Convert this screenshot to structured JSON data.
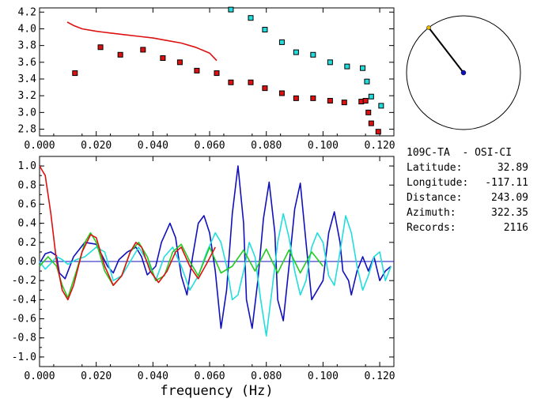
{
  "info": {
    "station": "109C-TA  - OSI-CI",
    "rows": [
      {
        "label": "Latitude:",
        "value": "32.89"
      },
      {
        "label": "Longitude:",
        "value": "-117.11"
      },
      {
        "label": "Distance:",
        "value": "243.09"
      },
      {
        "label": "Azimuth:",
        "value": "322.35"
      },
      {
        "label": "Records:",
        "value": "2116"
      }
    ]
  },
  "chart_data": [
    {
      "type": "scatter",
      "title": "",
      "xlabel": "",
      "ylabel": "",
      "xlim": [
        0.0,
        0.125
      ],
      "ylim": [
        2.72,
        4.25
      ],
      "xticks": [
        "0.000",
        "0.020",
        "0.040",
        "0.060",
        "0.080",
        "0.100",
        "0.120"
      ],
      "yticks": [
        "2.8",
        "3.0",
        "3.2",
        "3.4",
        "3.6",
        "3.8",
        "4.0",
        "4.2"
      ],
      "colors": {
        "red": "#dd1111",
        "cyan": "#22dddd",
        "marker_edge": "#000000"
      },
      "series": [
        {
          "type": "line",
          "color": "red",
          "x": [
            0.0098,
            0.012,
            0.015,
            0.02,
            0.025,
            0.03,
            0.035,
            0.04,
            0.045,
            0.05,
            0.055,
            0.06,
            0.0625
          ],
          "y": [
            4.08,
            4.04,
            4.0,
            3.97,
            3.95,
            3.93,
            3.91,
            3.89,
            3.86,
            3.83,
            3.78,
            3.71,
            3.62
          ]
        },
        {
          "type": "scatter",
          "color": "red",
          "x": [
            0.0125,
            0.0215,
            0.0285,
            0.0365,
            0.0435,
            0.0495,
            0.0555,
            0.0625,
            0.0675,
            0.0745,
            0.0795,
            0.0855,
            0.0905,
            0.0965,
            0.1025,
            0.1075,
            0.1135,
            0.115,
            0.116,
            0.117,
            0.1195
          ],
          "y": [
            3.47,
            3.78,
            3.69,
            3.75,
            3.65,
            3.6,
            3.5,
            3.47,
            3.36,
            3.36,
            3.29,
            3.23,
            3.17,
            3.17,
            3.14,
            3.12,
            3.13,
            3.14,
            3.0,
            2.87,
            2.77
          ]
        },
        {
          "type": "scatter",
          "color": "cyan",
          "x": [
            0.0675,
            0.0745,
            0.0795,
            0.0855,
            0.0905,
            0.0965,
            0.1025,
            0.1085,
            0.114,
            0.1155,
            0.117,
            0.1205
          ],
          "y": [
            4.23,
            4.13,
            3.99,
            3.84,
            3.72,
            3.69,
            3.6,
            3.55,
            3.53,
            3.37,
            3.19,
            3.08
          ]
        }
      ]
    },
    {
      "type": "line",
      "title": "",
      "xlabel": "frequency (Hz)",
      "ylabel": "",
      "xlim": [
        0.0,
        0.125
      ],
      "ylim": [
        -1.1,
        1.1
      ],
      "xticks": [
        "0.000",
        "0.020",
        "0.040",
        "0.060",
        "0.080",
        "0.100",
        "0.120"
      ],
      "yticks": [
        "1.0",
        "0.8",
        "0.6",
        "0.4",
        "0.2",
        "0.0",
        "-0.2",
        "-0.4",
        "-0.6",
        "-0.8",
        "-1.0"
      ],
      "zero_line": true,
      "colors": {
        "red": "#dd1111",
        "green": "#22cc22",
        "cyan": "#22dddd",
        "blue": "#1111bb",
        "zero": "#1111bb"
      },
      "series": [
        {
          "color": "blue",
          "x": [
            0.0,
            0.002,
            0.004,
            0.006,
            0.007,
            0.009,
            0.012,
            0.016,
            0.02,
            0.024,
            0.026,
            0.028,
            0.031,
            0.034,
            0.036,
            0.038,
            0.041,
            0.043,
            0.046,
            0.048,
            0.05,
            0.052,
            0.054,
            0.056,
            0.058,
            0.06,
            0.062,
            0.064,
            0.066,
            0.068,
            0.07,
            0.072,
            0.073,
            0.075,
            0.077,
            0.079,
            0.081,
            0.083,
            0.084,
            0.086,
            0.088,
            0.09,
            0.092,
            0.094,
            0.096,
            0.098,
            0.1,
            0.102,
            0.104,
            0.106,
            0.107,
            0.109,
            0.11,
            0.112,
            0.114,
            0.116,
            0.118,
            0.12,
            0.122,
            0.124
          ],
          "y": [
            -0.02,
            0.08,
            0.1,
            0.06,
            -0.12,
            -0.18,
            0.05,
            0.2,
            0.18,
            -0.05,
            -0.12,
            0.02,
            0.1,
            0.15,
            0.05,
            -0.14,
            -0.05,
            0.2,
            0.4,
            0.25,
            -0.15,
            -0.35,
            0.05,
            0.4,
            0.48,
            0.3,
            -0.1,
            -0.7,
            -0.3,
            0.5,
            1.0,
            0.4,
            -0.4,
            -0.7,
            -0.2,
            0.45,
            0.83,
            0.3,
            -0.4,
            -0.62,
            -0.05,
            0.55,
            0.82,
            0.2,
            -0.4,
            -0.3,
            -0.2,
            0.3,
            0.52,
            0.2,
            -0.1,
            -0.2,
            -0.35,
            -0.1,
            0.05,
            -0.1,
            0.05,
            -0.2,
            -0.1,
            -0.05
          ]
        },
        {
          "color": "cyan",
          "x": [
            0.0,
            0.002,
            0.004,
            0.006,
            0.008,
            0.01,
            0.013,
            0.016,
            0.02,
            0.023,
            0.026,
            0.029,
            0.032,
            0.035,
            0.038,
            0.041,
            0.044,
            0.047,
            0.05,
            0.053,
            0.056,
            0.059,
            0.062,
            0.064,
            0.066,
            0.068,
            0.07,
            0.072,
            0.074,
            0.076,
            0.078,
            0.08,
            0.082,
            0.084,
            0.086,
            0.088,
            0.09,
            0.092,
            0.094,
            0.096,
            0.098,
            0.1,
            0.102,
            0.104,
            0.106,
            0.108,
            0.11,
            0.112,
            0.114,
            0.116,
            0.118,
            0.12,
            0.122,
            0.124
          ],
          "y": [
            0.0,
            -0.08,
            -0.02,
            0.05,
            0.02,
            -0.03,
            0.02,
            0.05,
            0.15,
            0.1,
            -0.2,
            -0.15,
            0.0,
            0.15,
            0.0,
            -0.2,
            0.05,
            0.15,
            -0.05,
            -0.3,
            -0.15,
            0.1,
            0.3,
            0.2,
            -0.05,
            -0.4,
            -0.35,
            -0.1,
            0.2,
            0.05,
            -0.4,
            -0.78,
            -0.3,
            0.2,
            0.5,
            0.25,
            -0.1,
            -0.35,
            -0.2,
            0.15,
            0.3,
            0.2,
            -0.15,
            -0.25,
            0.1,
            0.48,
            0.3,
            -0.05,
            -0.3,
            -0.15,
            0.05,
            0.1,
            -0.2,
            -0.05
          ]
        },
        {
          "color": "green",
          "x": [
            0.0,
            0.003,
            0.006,
            0.008,
            0.01,
            0.013,
            0.016,
            0.018,
            0.02,
            0.023,
            0.026,
            0.029,
            0.032,
            0.035,
            0.038,
            0.041,
            0.044,
            0.047,
            0.05,
            0.053,
            0.056,
            0.06,
            0.064,
            0.068,
            0.072,
            0.076,
            0.08,
            0.084,
            0.088,
            0.092,
            0.096,
            0.1
          ],
          "y": [
            -0.05,
            0.05,
            -0.05,
            -0.25,
            -0.38,
            -0.1,
            0.2,
            0.3,
            0.2,
            -0.1,
            -0.25,
            -0.15,
            0.1,
            0.2,
            0.05,
            -0.2,
            -0.15,
            0.1,
            0.18,
            0.0,
            -0.15,
            0.15,
            -0.12,
            -0.05,
            0.12,
            -0.1,
            0.13,
            -0.12,
            0.12,
            -0.12,
            0.1,
            -0.05
          ]
        },
        {
          "color": "red",
          "x": [
            0.0,
            0.002,
            0.004,
            0.006,
            0.008,
            0.01,
            0.012,
            0.015,
            0.018,
            0.02,
            0.023,
            0.026,
            0.029,
            0.032,
            0.034,
            0.036,
            0.039,
            0.042,
            0.045,
            0.048,
            0.05,
            0.053,
            0.056,
            0.059,
            0.062
          ],
          "y": [
            1.0,
            0.9,
            0.5,
            0.0,
            -0.3,
            -0.4,
            -0.25,
            0.1,
            0.28,
            0.25,
            -0.05,
            -0.25,
            -0.15,
            0.1,
            0.2,
            0.15,
            -0.1,
            -0.22,
            -0.1,
            0.1,
            0.15,
            -0.05,
            -0.18,
            -0.02,
            0.15
          ]
        }
      ]
    },
    {
      "type": "dial",
      "azimuth_deg": 322.35,
      "colors": {
        "circle": "#000000",
        "needle": "#000000",
        "hub": "#1111bb",
        "tip": "#e8b800"
      }
    }
  ]
}
